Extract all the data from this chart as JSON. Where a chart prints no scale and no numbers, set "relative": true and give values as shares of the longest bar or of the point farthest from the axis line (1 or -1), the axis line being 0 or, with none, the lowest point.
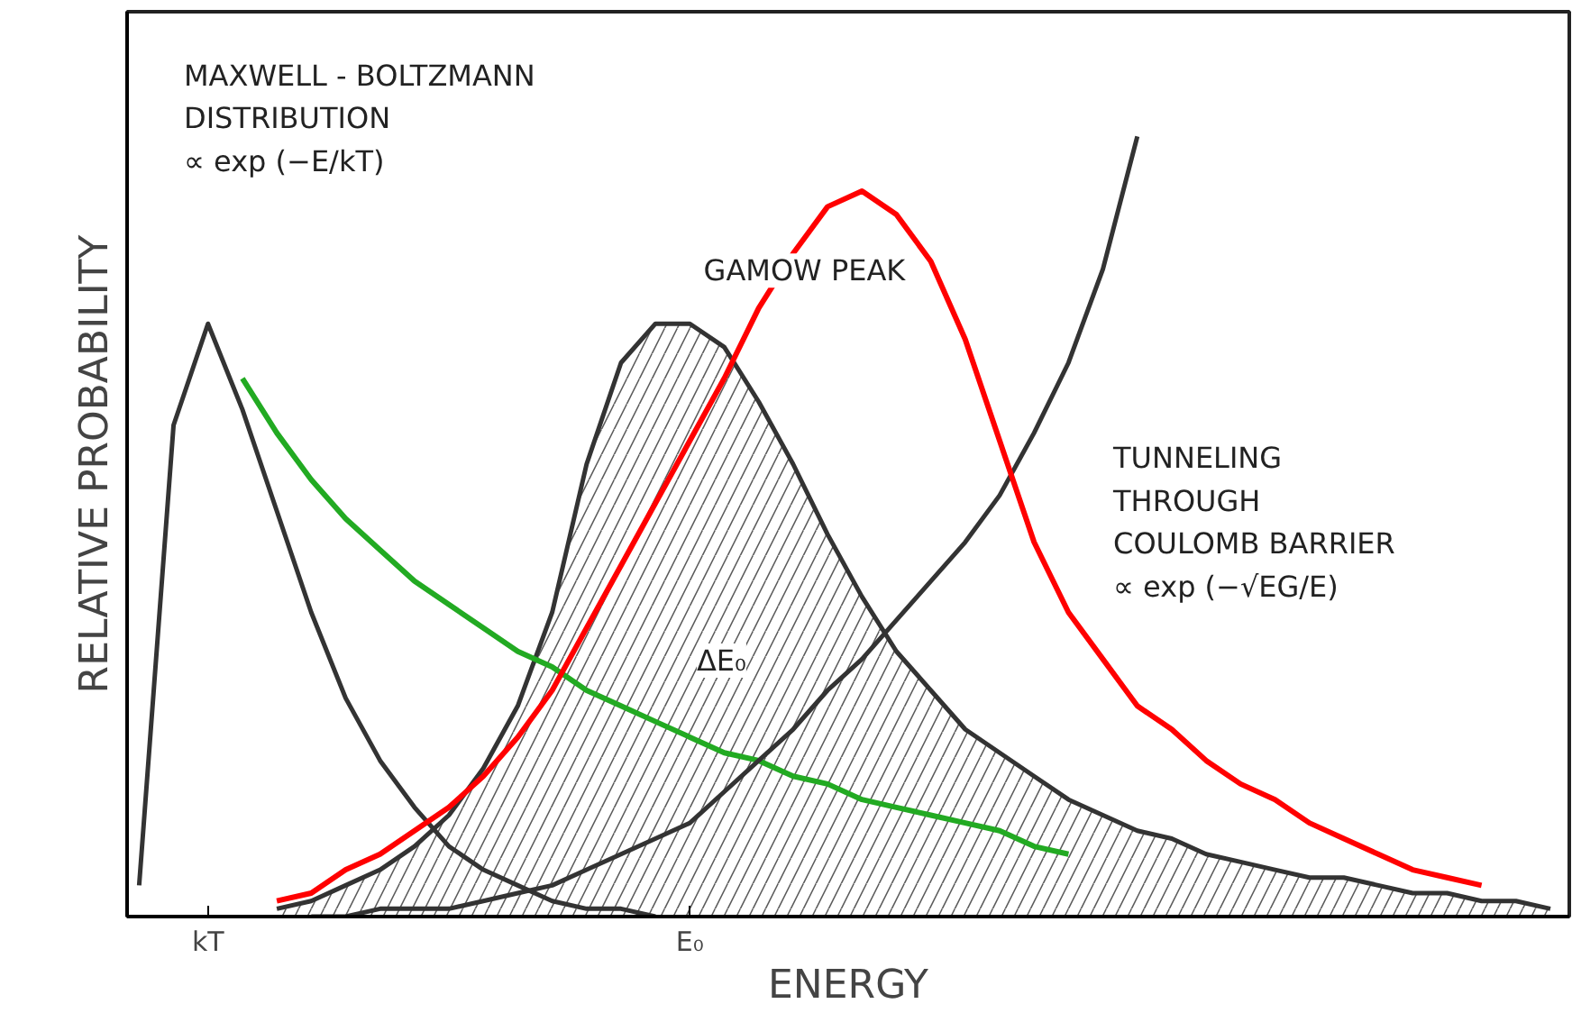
{
  "chart_data": {
    "type": "line",
    "relative": true,
    "xlabel": "ENERGY",
    "ylabel": "RELATIVE PROBABILITY",
    "categories": [
      null,
      null,
      "kT",
      null,
      null,
      null,
      null,
      null,
      null,
      null,
      null,
      null,
      null,
      null,
      null,
      null,
      "E₀",
      null,
      null,
      null,
      null,
      null,
      null,
      null,
      null,
      null,
      null,
      null,
      null,
      null,
      null,
      null,
      null,
      null,
      null,
      null,
      null,
      null,
      null,
      null,
      null,
      null
    ],
    "series": [
      {
        "color": "#333333",
        "values": [
          0.04,
          0.63,
          0.76,
          0.65,
          0.52,
          0.39,
          0.28,
          0.2,
          0.14,
          0.09,
          0.06,
          0.04,
          0.02,
          0.01,
          0.01,
          0.0,
          null,
          null,
          null,
          null,
          null,
          null,
          null,
          null,
          null,
          null,
          null,
          null,
          null,
          null,
          null,
          null,
          null,
          null,
          null,
          null,
          null,
          null,
          null,
          null,
          null,
          null
        ]
      },
      {
        "color": "#22aa22",
        "values": [
          null,
          null,
          null,
          0.69,
          0.62,
          0.56,
          0.51,
          0.47,
          0.43,
          0.4,
          0.37,
          0.34,
          0.32,
          0.29,
          0.27,
          0.25,
          0.23,
          0.21,
          0.2,
          0.18,
          0.17,
          0.15,
          0.14,
          0.13,
          0.12,
          0.11,
          0.09,
          0.08,
          null,
          null,
          null,
          null,
          null,
          null,
          null,
          null,
          null,
          null,
          null,
          null,
          null,
          null
        ]
      },
      {
        "type": "area",
        "color": "#333333",
        "values": [
          null,
          null,
          null,
          null,
          0.01,
          0.02,
          0.04,
          0.06,
          0.09,
          0.13,
          0.19,
          0.27,
          0.39,
          0.58,
          0.71,
          0.76,
          0.76,
          0.73,
          0.66,
          0.58,
          0.49,
          0.41,
          0.34,
          0.29,
          0.24,
          0.21,
          0.18,
          0.15,
          0.13,
          0.11,
          0.1,
          0.08,
          0.07,
          0.06,
          0.05,
          0.05,
          0.04,
          0.03,
          0.03,
          0.02,
          0.02,
          0.01
        ]
      },
      {
        "color": "#333333",
        "values": [
          null,
          null,
          null,
          null,
          null,
          0.0,
          0.0,
          0.01,
          0.01,
          0.01,
          0.02,
          0.03,
          0.04,
          0.06,
          0.08,
          0.1,
          0.12,
          0.16,
          0.2,
          0.24,
          0.29,
          0.33,
          0.38,
          0.43,
          0.48,
          0.54,
          0.62,
          0.71,
          0.83,
          1.0,
          null,
          null,
          null,
          null,
          null,
          null,
          null,
          null,
          null,
          null,
          null,
          null
        ]
      },
      {
        "color": "#ff0000",
        "values": [
          null,
          null,
          null,
          null,
          0.02,
          0.03,
          0.06,
          0.08,
          0.11,
          0.14,
          0.18,
          0.23,
          0.29,
          0.37,
          0.45,
          0.53,
          0.61,
          0.69,
          0.78,
          0.85,
          0.91,
          0.93,
          0.9,
          0.84,
          0.74,
          0.61,
          0.48,
          0.39,
          0.33,
          0.27,
          0.24,
          0.2,
          0.17,
          0.15,
          0.12,
          0.1,
          0.08,
          0.06,
          0.05,
          0.04,
          null,
          null
        ]
      }
    ],
    "annotations": [
      "MAXWELL - BOLTZMANN\nDISTRIBUTION\n∝ exp (−E/kT)",
      "GAMOW PEAK",
      "TUNNELING\nTHROUGH\nCOULOMB BARRIER\n∝ exp (−√EG/E)",
      "ΔE₀"
    ]
  }
}
